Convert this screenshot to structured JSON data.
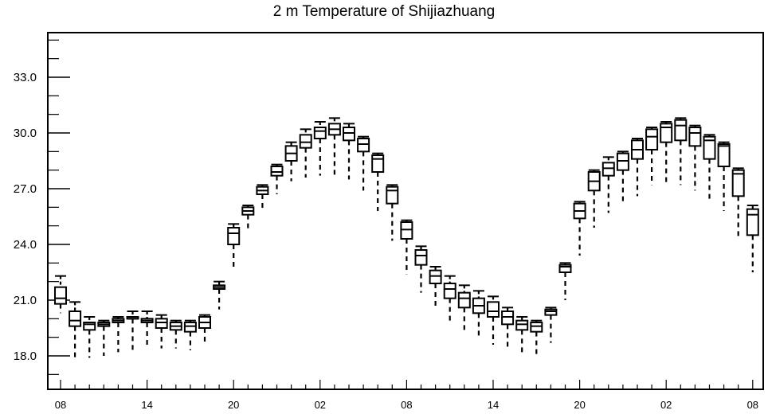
{
  "chart_data": {
    "type": "box",
    "title": "2 m Temperature of Shijiazhuang",
    "xlabel": "",
    "ylabel": "",
    "ylim": [
      16.2,
      35.4
    ],
    "y_ticks": [
      "18.0",
      "21.0",
      "24.0",
      "27.0",
      "30.0",
      "33.0"
    ],
    "y_tick_values": [
      18,
      21,
      24,
      27,
      30,
      33
    ],
    "x_tick_labels": [
      "08",
      "14",
      "20",
      "02",
      "08",
      "14",
      "20",
      "02",
      "08"
    ],
    "x_tick_steps": [
      0,
      6,
      12,
      18,
      24,
      30,
      36,
      42,
      48
    ],
    "grid": false,
    "boxes": [
      {
        "step": 0,
        "min": 20.3,
        "q1": 20.8,
        "median": 21.1,
        "q3": 21.7,
        "max": 22.3
      },
      {
        "step": 1,
        "min": 17.9,
        "q1": 19.6,
        "median": 19.9,
        "q3": 20.4,
        "max": 20.9
      },
      {
        "step": 2,
        "min": 17.9,
        "q1": 19.4,
        "median": 19.7,
        "q3": 19.8,
        "max": 20.1
      },
      {
        "step": 3,
        "min": 18.0,
        "q1": 19.6,
        "median": 19.7,
        "q3": 19.8,
        "max": 19.9
      },
      {
        "step": 4,
        "min": 18.2,
        "q1": 19.8,
        "median": 19.9,
        "q3": 20.0,
        "max": 20.1
      },
      {
        "step": 5,
        "min": 18.3,
        "q1": 20.0,
        "median": 20.0,
        "q3": 20.1,
        "max": 20.4
      },
      {
        "step": 6,
        "min": 18.4,
        "q1": 19.8,
        "median": 19.9,
        "q3": 20.0,
        "max": 20.4
      },
      {
        "step": 7,
        "min": 18.4,
        "q1": 19.5,
        "median": 19.8,
        "q3": 20.0,
        "max": 20.2
      },
      {
        "step": 8,
        "min": 18.4,
        "q1": 19.4,
        "median": 19.6,
        "q3": 19.8,
        "max": 19.9
      },
      {
        "step": 9,
        "min": 18.3,
        "q1": 19.3,
        "median": 19.6,
        "q3": 19.8,
        "max": 19.9
      },
      {
        "step": 10,
        "min": 18.6,
        "q1": 19.5,
        "median": 19.8,
        "q3": 20.1,
        "max": 20.2
      },
      {
        "step": 11,
        "min": 20.5,
        "q1": 21.6,
        "median": 21.7,
        "q3": 21.8,
        "max": 22.0
      },
      {
        "step": 12,
        "min": 22.8,
        "q1": 24.0,
        "median": 24.6,
        "q3": 24.9,
        "max": 25.1
      },
      {
        "step": 13,
        "min": 24.8,
        "q1": 25.6,
        "median": 25.8,
        "q3": 26.0,
        "max": 26.1
      },
      {
        "step": 14,
        "min": 25.9,
        "q1": 26.7,
        "median": 26.9,
        "q3": 27.1,
        "max": 27.2
      },
      {
        "step": 15,
        "min": 26.7,
        "q1": 27.7,
        "median": 27.9,
        "q3": 28.2,
        "max": 28.3
      },
      {
        "step": 16,
        "min": 27.4,
        "q1": 28.5,
        "median": 28.9,
        "q3": 29.3,
        "max": 29.5
      },
      {
        "step": 17,
        "min": 27.6,
        "q1": 29.2,
        "median": 29.5,
        "q3": 29.9,
        "max": 30.2
      },
      {
        "step": 18,
        "min": 27.7,
        "q1": 29.7,
        "median": 30.1,
        "q3": 30.3,
        "max": 30.6
      },
      {
        "step": 19,
        "min": 27.7,
        "q1": 29.9,
        "median": 30.2,
        "q3": 30.5,
        "max": 30.8
      },
      {
        "step": 20,
        "min": 27.5,
        "q1": 29.6,
        "median": 30.0,
        "q3": 30.3,
        "max": 30.5
      },
      {
        "step": 21,
        "min": 26.9,
        "q1": 29.0,
        "median": 29.4,
        "q3": 29.7,
        "max": 29.8
      },
      {
        "step": 22,
        "min": 25.8,
        "q1": 27.9,
        "median": 28.6,
        "q3": 28.8,
        "max": 28.9
      },
      {
        "step": 23,
        "min": 24.2,
        "q1": 26.2,
        "median": 26.9,
        "q3": 27.1,
        "max": 27.2
      },
      {
        "step": 24,
        "min": 22.4,
        "q1": 24.3,
        "median": 24.8,
        "q3": 25.2,
        "max": 25.3
      },
      {
        "step": 25,
        "min": 21.4,
        "q1": 22.9,
        "median": 23.4,
        "q3": 23.7,
        "max": 23.9
      },
      {
        "step": 26,
        "min": 20.5,
        "q1": 21.9,
        "median": 22.3,
        "q3": 22.6,
        "max": 22.8
      },
      {
        "step": 27,
        "min": 19.8,
        "q1": 21.1,
        "median": 21.6,
        "q3": 21.9,
        "max": 22.3
      },
      {
        "step": 28,
        "min": 19.3,
        "q1": 20.6,
        "median": 21.1,
        "q3": 21.4,
        "max": 21.8
      },
      {
        "step": 29,
        "min": 18.9,
        "q1": 20.3,
        "median": 20.7,
        "q3": 21.1,
        "max": 21.5
      },
      {
        "step": 30,
        "min": 18.6,
        "q1": 20.1,
        "median": 20.4,
        "q3": 20.9,
        "max": 21.2
      },
      {
        "step": 31,
        "min": 18.3,
        "q1": 19.7,
        "median": 20.1,
        "q3": 20.4,
        "max": 20.6
      },
      {
        "step": 32,
        "min": 18.0,
        "q1": 19.4,
        "median": 19.7,
        "q3": 19.9,
        "max": 20.1
      },
      {
        "step": 33,
        "min": 18.0,
        "q1": 19.3,
        "median": 19.6,
        "q3": 19.8,
        "max": 19.9
      },
      {
        "step": 34,
        "min": 18.7,
        "q1": 20.2,
        "median": 20.4,
        "q3": 20.5,
        "max": 20.6
      },
      {
        "step": 35,
        "min": 21.0,
        "q1": 22.5,
        "median": 22.8,
        "q3": 22.9,
        "max": 23.0
      },
      {
        "step": 36,
        "min": 23.4,
        "q1": 25.4,
        "median": 25.8,
        "q3": 26.2,
        "max": 26.3
      },
      {
        "step": 37,
        "min": 24.9,
        "q1": 26.9,
        "median": 27.4,
        "q3": 27.9,
        "max": 28.0
      },
      {
        "step": 38,
        "min": 25.7,
        "q1": 27.7,
        "median": 28.1,
        "q3": 28.4,
        "max": 28.7
      },
      {
        "step": 39,
        "min": 26.2,
        "q1": 28.0,
        "median": 28.5,
        "q3": 28.9,
        "max": 29.0
      },
      {
        "step": 40,
        "min": 26.6,
        "q1": 28.6,
        "median": 29.1,
        "q3": 29.6,
        "max": 29.7
      },
      {
        "step": 41,
        "min": 27.2,
        "q1": 29.1,
        "median": 29.8,
        "q3": 30.2,
        "max": 30.3
      },
      {
        "step": 42,
        "min": 27.3,
        "q1": 29.5,
        "median": 30.3,
        "q3": 30.5,
        "max": 30.6
      },
      {
        "step": 43,
        "min": 27.2,
        "q1": 29.6,
        "median": 30.4,
        "q3": 30.7,
        "max": 30.8
      },
      {
        "step": 44,
        "min": 26.9,
        "q1": 29.3,
        "median": 30.0,
        "q3": 30.3,
        "max": 30.4
      },
      {
        "step": 45,
        "min": 26.4,
        "q1": 28.6,
        "median": 29.6,
        "q3": 29.8,
        "max": 29.9
      },
      {
        "step": 46,
        "min": 25.8,
        "q1": 28.2,
        "median": 29.3,
        "q3": 29.4,
        "max": 29.5
      },
      {
        "step": 47,
        "min": 24.4,
        "q1": 26.6,
        "median": 27.8,
        "q3": 28.0,
        "max": 28.1
      },
      {
        "step": 48,
        "min": 22.5,
        "q1": 24.5,
        "median": 25.6,
        "q3": 25.9,
        "max": 26.1
      }
    ]
  }
}
